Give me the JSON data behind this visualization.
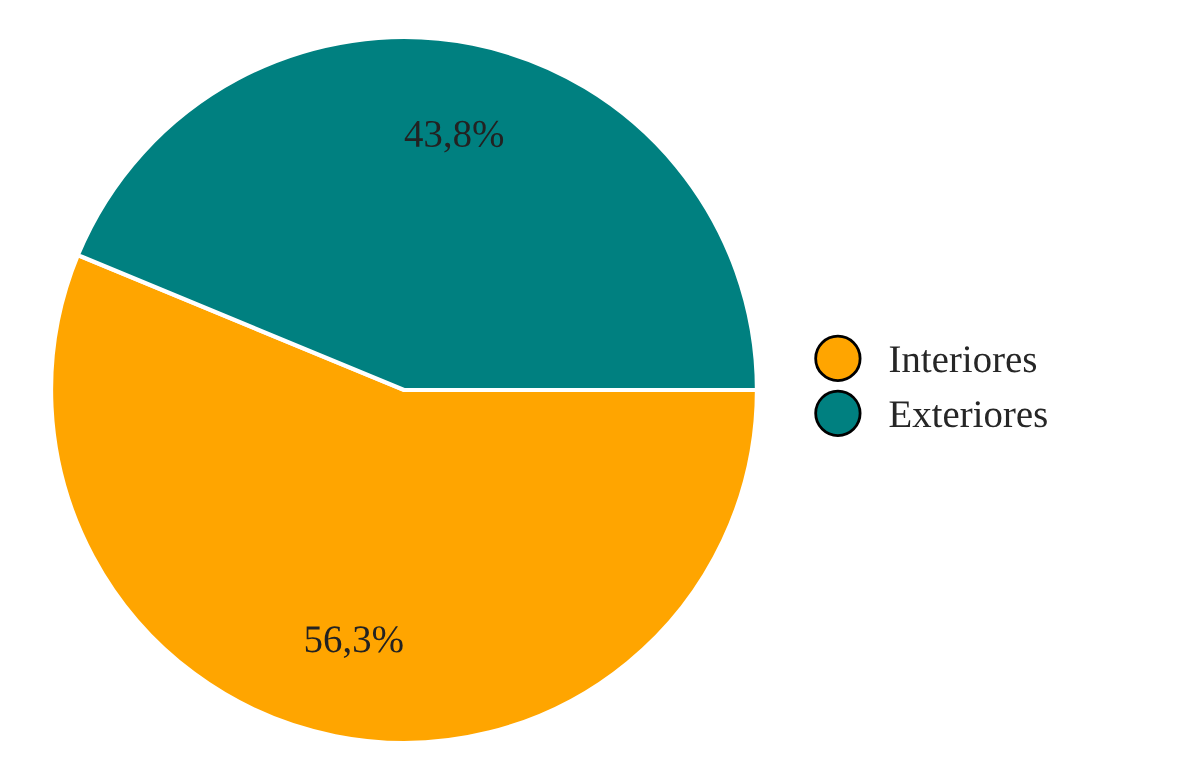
{
  "chart_data": {
    "type": "pie",
    "categories": [
      "Interiores",
      "Exteriores"
    ],
    "values": [
      56.3,
      43.8
    ],
    "colors": [
      "#ffa500",
      "#008080"
    ],
    "value_labels": [
      "56,3%",
      "43,8%"
    ],
    "legend": "right"
  }
}
